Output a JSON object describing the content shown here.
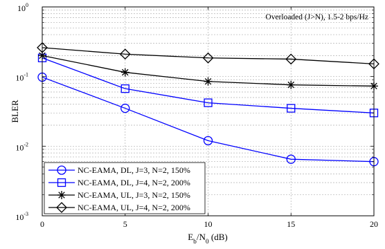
{
  "chart_data": {
    "type": "line",
    "title": "",
    "annotation": "Overloaded (J>N), 1.5-2 bps/Hz",
    "xlabel": {
      "main": "E",
      "sub1": "b",
      "mid": "/N",
      "sub2": "0",
      "tail": " (dB)"
    },
    "ylabel": "BLER",
    "xscale": "linear",
    "yscale": "log",
    "xlim": [
      0,
      20
    ],
    "ylim": [
      0.001,
      1
    ],
    "xticks": [
      0,
      5,
      10,
      15,
      20
    ],
    "xtick_labels": [
      "0",
      "5",
      "10",
      "15",
      "20"
    ],
    "yticks": [
      0.001,
      0.01,
      0.1,
      1
    ],
    "ytick_labels": [
      {
        "base": "10",
        "exp": "-3"
      },
      {
        "base": "10",
        "exp": "-2"
      },
      {
        "base": "10",
        "exp": "-1"
      },
      {
        "base": "10",
        "exp": "0"
      }
    ],
    "grid": true,
    "legend_position": "bottom-left",
    "x": [
      0,
      5,
      10,
      15,
      20
    ],
    "series": [
      {
        "name": "NC-EAMA, DL, J=3, N=2, 150%",
        "color": "#0000ff",
        "marker": "circle",
        "values": [
          0.098,
          0.035,
          0.012,
          0.0065,
          0.006
        ]
      },
      {
        "name": "NC-EAMA, DL, J=4, N=2, 200%",
        "color": "#0000ff",
        "marker": "square",
        "values": [
          0.185,
          0.067,
          0.042,
          0.035,
          0.03
        ]
      },
      {
        "name": "NC-EAMA, UL, J=3, N=2, 150%",
        "color": "#000000",
        "marker": "star",
        "values": [
          0.2,
          0.115,
          0.085,
          0.076,
          0.073
        ]
      },
      {
        "name": "NC-EAMA, UL, J=4, N=2, 200%",
        "color": "#000000",
        "marker": "diamond",
        "values": [
          0.26,
          0.21,
          0.185,
          0.178,
          0.152
        ]
      }
    ]
  }
}
